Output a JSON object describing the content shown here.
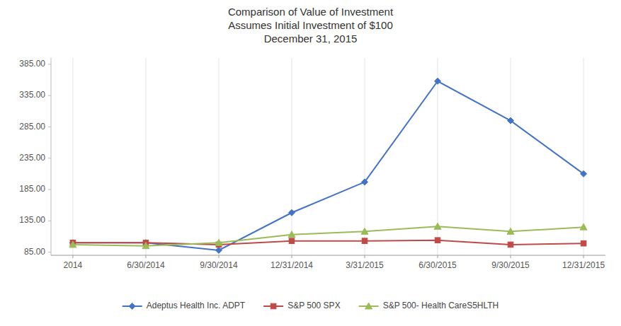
{
  "chart_data": {
    "type": "line",
    "title": "Comparison of Value of Investment\nAssumes Initial Investment of $100\nDecember 31, 2015",
    "categories": [
      "2014",
      "6/30/2014",
      "9/30/2014",
      "12/31/2014",
      "3/31/2015",
      "6/30/2015",
      "9/30/2015",
      "12/31/2015"
    ],
    "series": [
      {
        "name": "Adeptus Health Inc. ADPT",
        "color": "#4472C4",
        "marker": "diamond",
        "values": [
          100.0,
          100.0,
          88.0,
          148.0,
          197.0,
          358.0,
          295.0,
          210.0
        ]
      },
      {
        "name": "S&P 500 SPX",
        "color": "#BE4B48",
        "marker": "square",
        "values": [
          100.0,
          100.0,
          97.0,
          103.0,
          103.0,
          104.0,
          97.0,
          99.0
        ]
      },
      {
        "name": "S&P 500- Health CareS5HLTH",
        "color": "#9BBB59",
        "marker": "triangle",
        "values": [
          97.0,
          95.0,
          100.0,
          113.0,
          118.0,
          126.0,
          118.0,
          125.0
        ]
      }
    ],
    "ylim": [
      80,
      395
    ],
    "yticks": [
      {
        "value": 85.0,
        "label": "85.00"
      },
      {
        "value": 135.0,
        "label": "135.00"
      },
      {
        "value": 185.0,
        "label": "185.00"
      },
      {
        "value": 235.0,
        "label": "235.00"
      },
      {
        "value": 285.0,
        "label": "285.00"
      },
      {
        "value": 335.0,
        "label": "335.00"
      },
      {
        "value": 385.0,
        "label": "385.00"
      }
    ],
    "grid": true,
    "legend": "bottom"
  }
}
